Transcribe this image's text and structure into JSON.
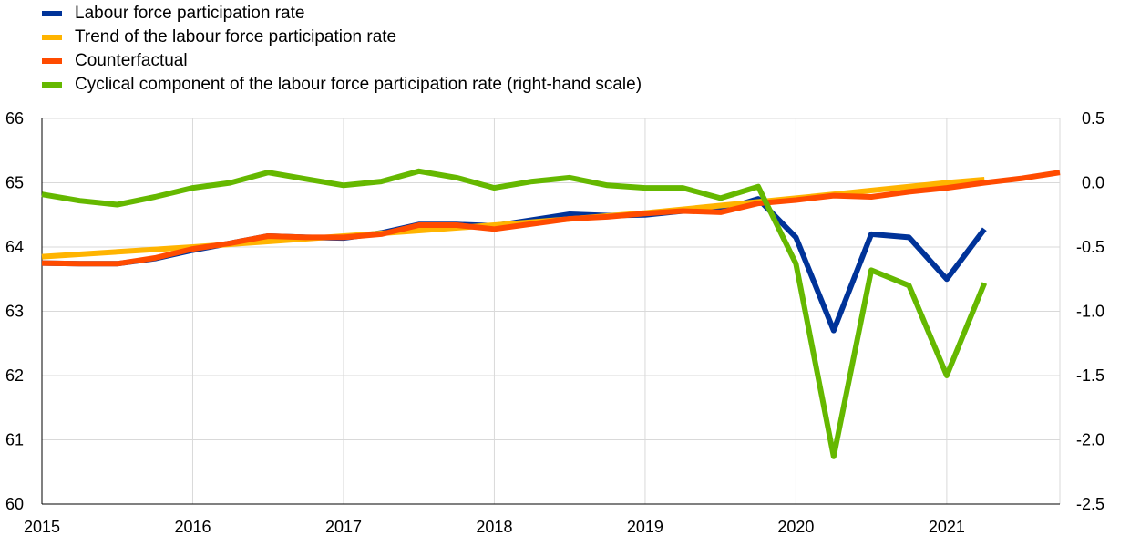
{
  "chart_data": {
    "type": "line",
    "title": "",
    "xlabel": "",
    "ylabel": "",
    "x_ticks": [
      "2015",
      "2016",
      "2017",
      "2018",
      "2019",
      "2020",
      "2021"
    ],
    "x_range": [
      2015,
      2021.75
    ],
    "ylim_left": [
      60,
      66
    ],
    "yticks_left": [
      "66",
      "65",
      "64",
      "63",
      "62",
      "61",
      "60"
    ],
    "ylim_right": [
      -2.5,
      0.5
    ],
    "yticks_right": [
      "0.5",
      "0.0",
      "-0.5",
      "-1.0",
      "-1.5",
      "-2.0",
      "-2.5"
    ],
    "grid": "vertical",
    "legend_position": "top-left",
    "series": [
      {
        "name": "Labour force participation rate",
        "color": "#003399",
        "axis": "left",
        "x": [
          2015.0,
          2015.25,
          2015.5,
          2015.75,
          2016.0,
          2016.25,
          2016.5,
          2016.75,
          2017.0,
          2017.25,
          2017.5,
          2017.75,
          2018.0,
          2018.25,
          2018.5,
          2018.75,
          2019.0,
          2019.25,
          2019.5,
          2019.75,
          2020.0,
          2020.25,
          2020.5,
          2020.75,
          2021.0,
          2021.25
        ],
        "values": [
          63.75,
          63.74,
          63.74,
          63.82,
          63.95,
          64.06,
          64.17,
          64.15,
          64.14,
          64.22,
          64.35,
          64.35,
          64.33,
          64.42,
          64.51,
          64.49,
          64.5,
          64.56,
          64.57,
          64.75,
          64.15,
          62.7,
          64.2,
          64.15,
          63.5,
          64.28
        ]
      },
      {
        "name": "Trend of the labour force participation rate",
        "color": "#ffb400",
        "axis": "left",
        "x": [
          2015.0,
          2016.0,
          2017.0,
          2018.0,
          2019.0,
          2020.0,
          2021.0,
          2021.25
        ],
        "values": [
          63.85,
          64.0,
          64.17,
          64.34,
          64.53,
          64.76,
          65.0,
          65.05
        ]
      },
      {
        "name": "Counterfactual",
        "color": "#ff4b00",
        "axis": "left",
        "x": [
          2015.0,
          2015.25,
          2015.5,
          2015.75,
          2016.0,
          2016.25,
          2016.5,
          2016.75,
          2017.0,
          2017.25,
          2017.5,
          2017.75,
          2018.0,
          2018.25,
          2018.5,
          2018.75,
          2019.0,
          2019.25,
          2019.5,
          2019.75,
          2020.0,
          2020.25,
          2020.5,
          2020.75,
          2021.0,
          2021.25,
          2021.5,
          2021.75
        ],
        "values": [
          63.75,
          63.74,
          63.74,
          63.83,
          63.97,
          64.06,
          64.17,
          64.15,
          64.15,
          64.2,
          64.34,
          64.34,
          64.28,
          64.36,
          64.44,
          64.47,
          64.52,
          64.56,
          64.54,
          64.68,
          64.73,
          64.8,
          64.78,
          64.86,
          64.92,
          65.0,
          65.07,
          65.16
        ]
      },
      {
        "name": "Cyclical component of the labour force participation rate (right-hand scale)",
        "color": "#65b800",
        "axis": "right",
        "x": [
          2015.0,
          2015.25,
          2015.5,
          2015.75,
          2016.0,
          2016.25,
          2016.5,
          2016.75,
          2017.0,
          2017.25,
          2017.5,
          2017.75,
          2018.0,
          2018.25,
          2018.5,
          2018.75,
          2019.0,
          2019.25,
          2019.5,
          2019.75,
          2020.0,
          2020.25,
          2020.5,
          2020.75,
          2021.0,
          2021.25
        ],
        "values": [
          -0.09,
          -0.14,
          -0.17,
          -0.11,
          -0.04,
          0.0,
          0.08,
          0.03,
          -0.02,
          0.01,
          0.09,
          0.04,
          -0.04,
          0.01,
          0.04,
          -0.02,
          -0.04,
          -0.04,
          -0.12,
          -0.03,
          -0.63,
          -2.13,
          -0.68,
          -0.8,
          -1.5,
          -0.78
        ]
      }
    ]
  }
}
